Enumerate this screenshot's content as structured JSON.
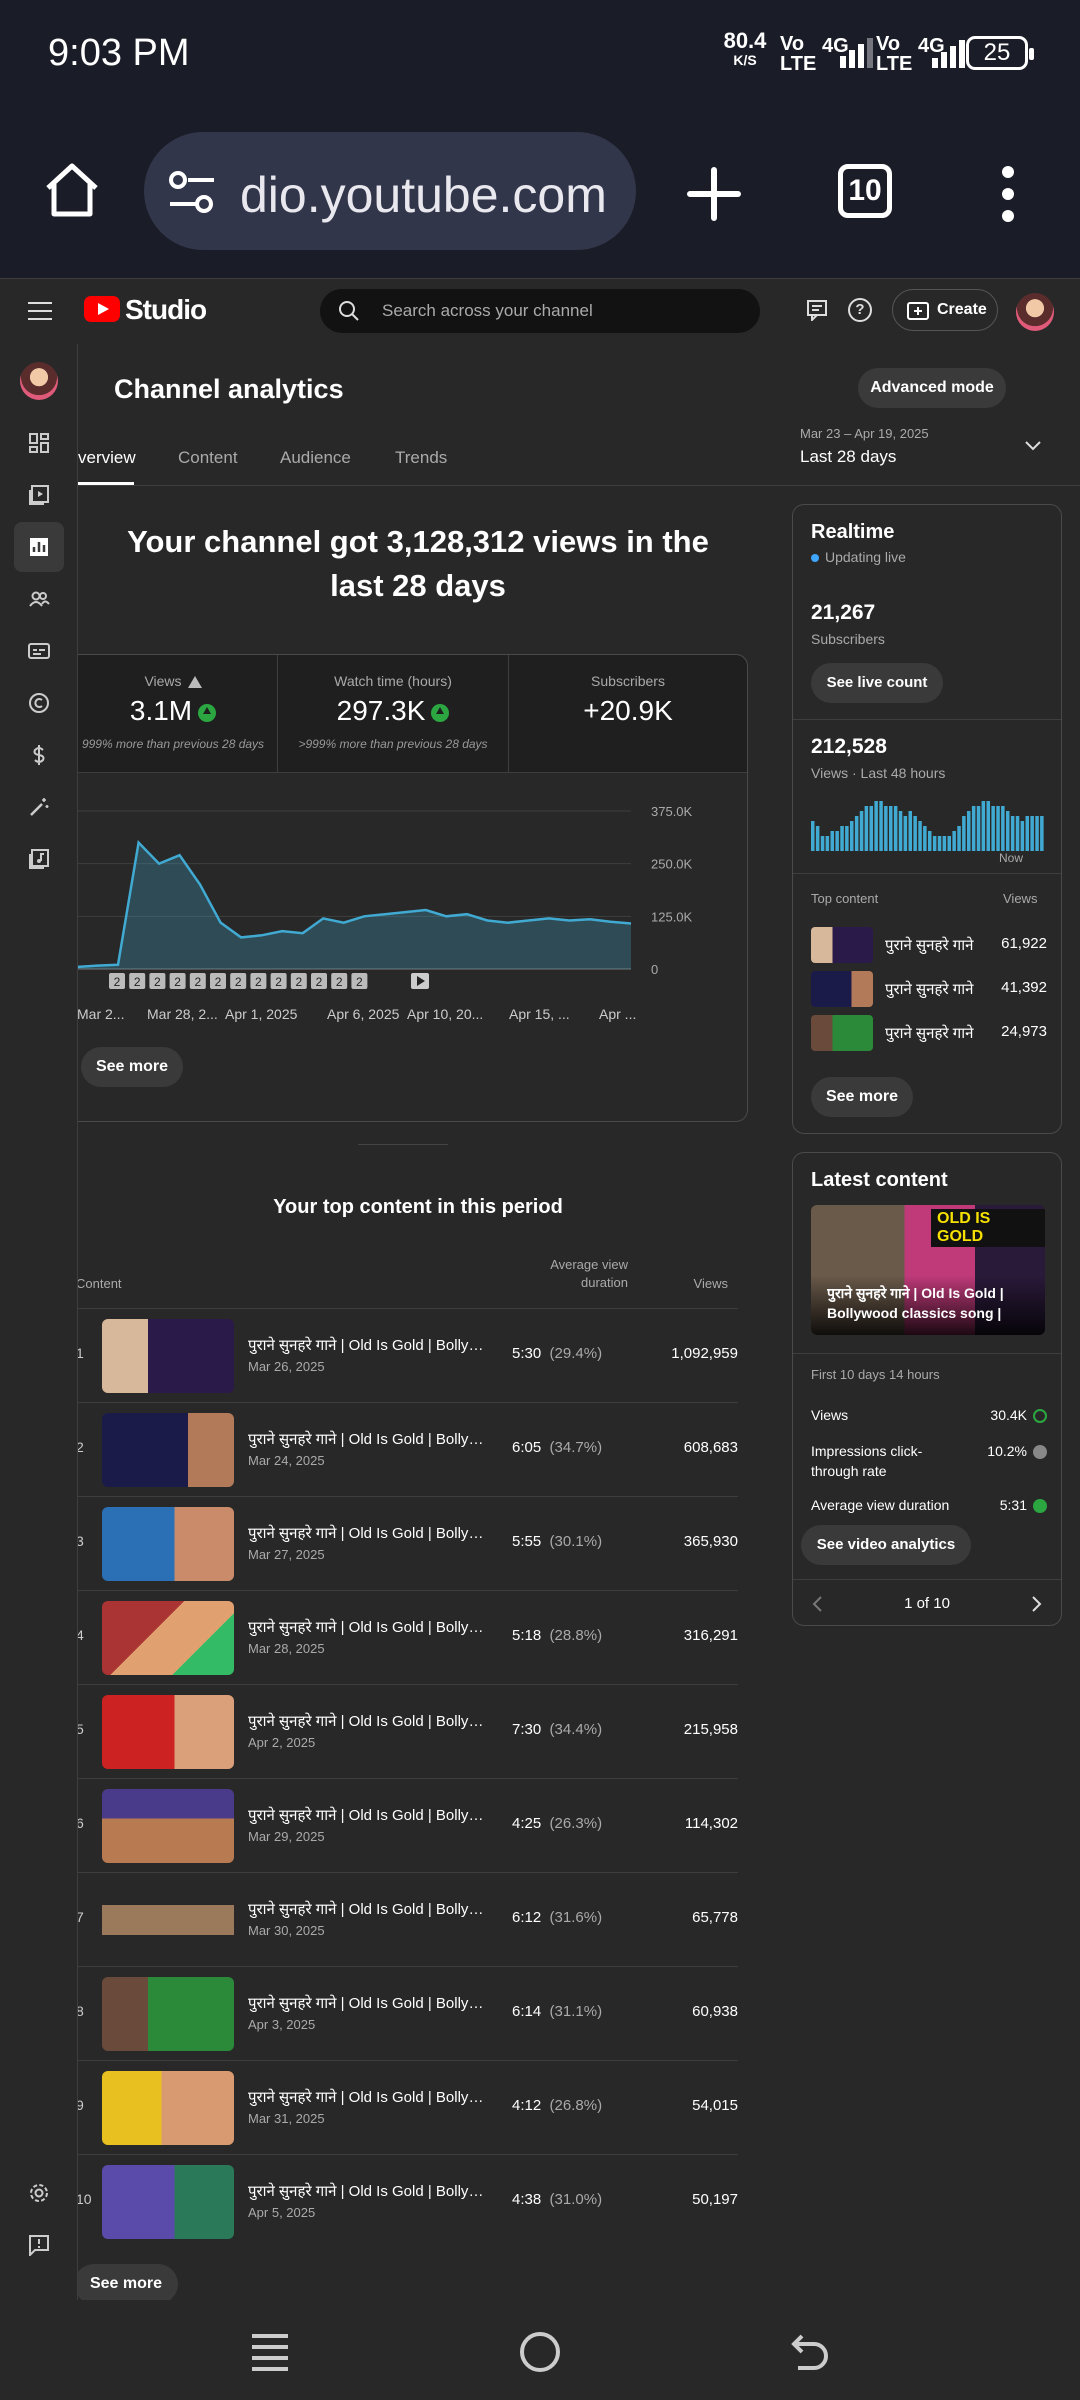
{
  "status_bar": {
    "time": "9:03 PM",
    "net_speed_value": "80.4",
    "net_speed_unit": "K/S",
    "sim1_label_top": "Vo",
    "sim1_label_bottom": "LTE",
    "sim1_type": "4G",
    "sim2_label_top": "Vo",
    "sim2_label_bottom": "LTE",
    "sim2_type": "4G",
    "battery": "25"
  },
  "browser": {
    "url": "dio.youtube.com",
    "tab_count": "10"
  },
  "studio_header": {
    "brand": "Studio",
    "search_placeholder": "Search across your channel",
    "create_label": "Create"
  },
  "analytics": {
    "title": "Channel analytics",
    "advanced_mode": "Advanced mode",
    "tabs": [
      "verview",
      "Content",
      "Audience",
      "Trends"
    ],
    "date_range_small": "Mar 23 – Apr 19, 2025",
    "date_range_label": "Last 28 days",
    "headline": "Your channel got 3,128,312 views in the last 28 days",
    "metrics": [
      {
        "label": "Views",
        "value": "3.1M",
        "note": "999% more than previous 28 days"
      },
      {
        "label": "Watch time (hours)",
        "value": "297.3K",
        "note": ">999% more than previous 28 days"
      },
      {
        "label": "Subscribers",
        "value": "+20.9K",
        "note": ""
      }
    ],
    "see_more": "See more",
    "top_content_title": "Your top content in this period",
    "table_headers": {
      "content": "Content",
      "avg_duration": "Average view duration",
      "views": "Views"
    },
    "top_content": [
      {
        "rank": "1",
        "title": "पुराने सुनहरे गाने | Old Is Gold | Bollywood Classics",
        "date": "Mar 26, 2025",
        "duration": "5:30",
        "pct": "(29.4%)",
        "views": "1,092,959"
      },
      {
        "rank": "2",
        "title": "पुराने सुनहरे गाने | Old Is Gold | Bollywood Classics",
        "date": "Mar 24, 2025",
        "duration": "6:05",
        "pct": "(34.7%)",
        "views": "608,683"
      },
      {
        "rank": "3",
        "title": "पुराने सुनहरे गाने | Old Is Gold | Bollywood Classics",
        "date": "Mar 27, 2025",
        "duration": "5:55",
        "pct": "(30.1%)",
        "views": "365,930"
      },
      {
        "rank": "4",
        "title": "पुराने सुनहरे गाने | Old Is Gold | Bollywood Classics",
        "date": "Mar 28, 2025",
        "duration": "5:18",
        "pct": "(28.8%)",
        "views": "316,291"
      },
      {
        "rank": "5",
        "title": "पुराने सुनहरे गाने | Old Is Gold | Bollywood Classics",
        "date": "Apr 2, 2025",
        "duration": "7:30",
        "pct": "(34.4%)",
        "views": "215,958"
      },
      {
        "rank": "6",
        "title": "पुराने सुनहरे गाने | Old Is Gold | Bollywood Classics",
        "date": "Mar 29, 2025",
        "duration": "4:25",
        "pct": "(26.3%)",
        "views": "114,302"
      },
      {
        "rank": "7",
        "title": "पुराने सुनहरे गाने | Old Is Gold | Bollywood Classics",
        "date": "Mar 30, 2025",
        "duration": "6:12",
        "pct": "(31.6%)",
        "views": "65,778"
      },
      {
        "rank": "8",
        "title": "पुराने सुनहरे गाने | Old Is Gold | Bollywood Classics",
        "date": "Apr 3, 2025",
        "duration": "6:14",
        "pct": "(31.1%)",
        "views": "60,938"
      },
      {
        "rank": "9",
        "title": "पुराने सुनहरे गाने | Old Is Gold | Bollywood Classics",
        "date": "Mar 31, 2025",
        "duration": "4:12",
        "pct": "(26.8%)",
        "views": "54,015"
      },
      {
        "rank": "10",
        "title": "पुराने सुनहरे गाने | Old Is Gold | Bollywood Classics",
        "date": "Apr 5, 2025",
        "duration": "4:38",
        "pct": "(31.0%)",
        "views": "50,197"
      }
    ],
    "see_more_bottom": "See more"
  },
  "realtime": {
    "title": "Realtime",
    "status": "Updating live",
    "subscribers": "21,267",
    "subscribers_label": "Subscribers",
    "see_live_count": "See live count",
    "views": "212,528",
    "views_label": "Views · Last 48 hours",
    "now_label": "Now",
    "top_content_label": "Top content",
    "views_col_label": "Views",
    "top_content": [
      {
        "title": "पुराने सुनहरे गाने",
        "views": "61,922"
      },
      {
        "title": "पुराने सुनहरे गाने",
        "views": "41,392"
      },
      {
        "title": "पुराने सुनहरे गाने",
        "views": "24,973"
      }
    ],
    "see_more": "See more"
  },
  "latest": {
    "title": "Latest content",
    "video_title": "पुराने सुनहरे गाने | Old Is Gold | Bollywood classics song |",
    "thumb_badge": "OLD IS GOLD",
    "period": "First 10 days 14 hours",
    "rows": [
      {
        "label": "Views",
        "value": "30.4K"
      },
      {
        "label": "Impressions click-through rate",
        "value": "10.2%"
      },
      {
        "label": "Average view duration",
        "value": "5:31"
      }
    ],
    "see_video_analytics": "See video analytics",
    "pager": "1 of 10"
  },
  "chart_data": [
    {
      "type": "area",
      "title": "Views",
      "x": [
        "Mar 23",
        "Mar 24",
        "Mar 25",
        "Mar 26",
        "Mar 27",
        "Mar 28",
        "Mar 29",
        "Mar 30",
        "Mar 31",
        "Apr 1",
        "Apr 2",
        "Apr 3",
        "Apr 4",
        "Apr 5",
        "Apr 6",
        "Apr 7",
        "Apr 8",
        "Apr 9",
        "Apr 10",
        "Apr 11",
        "Apr 12",
        "Apr 13",
        "Apr 14",
        "Apr 15",
        "Apr 16",
        "Apr 17",
        "Apr 18",
        "Apr 19"
      ],
      "values": [
        5000,
        8000,
        10000,
        300000,
        250000,
        270000,
        200000,
        110000,
        75000,
        80000,
        90000,
        85000,
        120000,
        110000,
        125000,
        130000,
        135000,
        140000,
        125000,
        130000,
        115000,
        110000,
        115000,
        120000,
        115000,
        118000,
        112000,
        108000
      ],
      "x_tick_labels": [
        "Mar 2...",
        "Mar 28, 2...",
        "Apr 1, 2025",
        "Apr 6, 2025",
        "Apr 10, 20...",
        "Apr 15, ...",
        "Apr ..."
      ],
      "y_tick_labels": [
        "375.0K",
        "250.0K",
        "125.0K",
        "0"
      ],
      "ylim": [
        0,
        375000
      ],
      "grid": true,
      "markers": [
        "2",
        "2",
        "2",
        "2",
        "2",
        "2",
        "2",
        "2",
        "2",
        "2",
        "2",
        "2",
        "2"
      ]
    },
    {
      "type": "bar",
      "title": "Views · Last 48 hours",
      "values": [
        6,
        5,
        3,
        3,
        4,
        4,
        5,
        5,
        6,
        7,
        8,
        9,
        9,
        10,
        10,
        9,
        9,
        9,
        8,
        7,
        8,
        7,
        6,
        5,
        4,
        3,
        3,
        3,
        3,
        4,
        5,
        7,
        8,
        9,
        9,
        10,
        10,
        9,
        9,
        9,
        8,
        7,
        7,
        6,
        7,
        7,
        7,
        7
      ]
    }
  ]
}
